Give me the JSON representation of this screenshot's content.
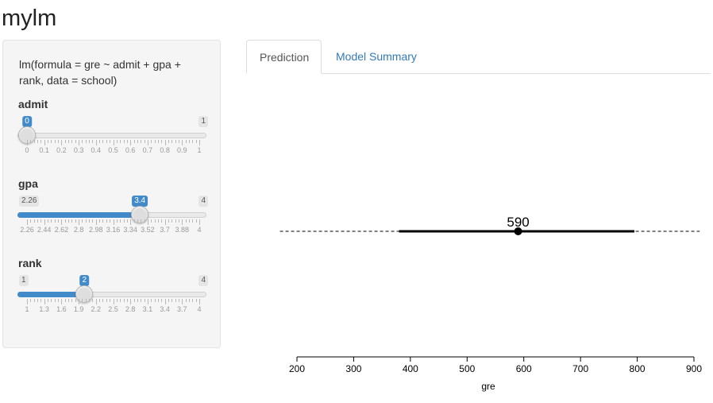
{
  "app": {
    "title": "mylm"
  },
  "sidebar": {
    "formula": "lm(formula = gre ~ admit + gpa + rank, data = school)",
    "sliders": [
      {
        "label": "admit",
        "min_label": "0",
        "max_label": "1",
        "min": 0,
        "max": 1,
        "value": 0,
        "value_label": "0",
        "ticks": [
          "0",
          "0.1",
          "0.2",
          "0.3",
          "0.4",
          "0.5",
          "0.6",
          "0.7",
          "0.8",
          "0.9",
          "1"
        ],
        "show_min_badge": false
      },
      {
        "label": "gpa",
        "min_label": "2.26",
        "max_label": "4",
        "min": 2.26,
        "max": 4,
        "value": 3.4,
        "value_label": "3.4",
        "ticks": [
          "2.26",
          "2.44",
          "2.62",
          "2.8",
          "2.98",
          "3.16",
          "3.34",
          "3.52",
          "3.7",
          "3.88",
          "4"
        ],
        "show_min_badge": true
      },
      {
        "label": "rank",
        "min_label": "1",
        "max_label": "4",
        "min": 1,
        "max": 4,
        "value": 2,
        "value_label": "2",
        "ticks": [
          "1",
          "1.3",
          "1.6",
          "1.9",
          "2.2",
          "2.5",
          "2.8",
          "3.1",
          "3.4",
          "3.7",
          "4"
        ],
        "show_min_badge": true
      }
    ]
  },
  "tabs": [
    {
      "label": "Prediction",
      "active": true
    },
    {
      "label": "Model Summary",
      "active": false
    }
  ],
  "chart_data": {
    "type": "scatter",
    "prediction": 590,
    "prediction_label": "590",
    "interval_low": 380,
    "interval_high": 795,
    "xlabel": "gre",
    "xlim": [
      200,
      900
    ],
    "xticks": [
      "200",
      "300",
      "400",
      "500",
      "600",
      "700",
      "800",
      "900"
    ],
    "dashed_range": [
      170,
      910
    ]
  }
}
